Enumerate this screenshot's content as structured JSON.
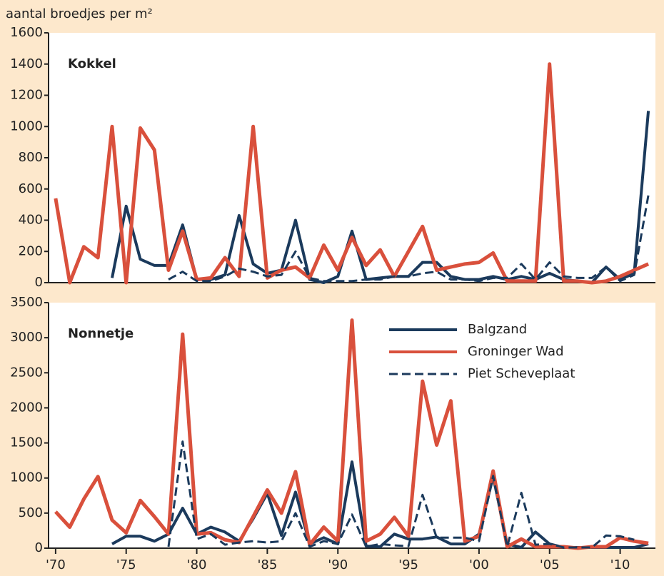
{
  "chart_data": [
    {
      "type": "line",
      "title": "Kokkel",
      "y_label": "aantal broedjes per m²",
      "xlim": [
        1969.5,
        2012.5
      ],
      "ylim": [
        0,
        1600
      ],
      "yticks": [
        0,
        200,
        400,
        600,
        800,
        1000,
        1200,
        1400,
        1600
      ],
      "x": [
        1970,
        1971,
        1972,
        1973,
        1974,
        1975,
        1976,
        1977,
        1978,
        1979,
        1980,
        1981,
        1982,
        1983,
        1984,
        1985,
        1986,
        1987,
        1988,
        1989,
        1990,
        1991,
        1992,
        1993,
        1994,
        1995,
        1996,
        1997,
        1998,
        1999,
        2000,
        2001,
        2002,
        2003,
        2004,
        2005,
        2006,
        2007,
        2008,
        2009,
        2010,
        2011,
        2012
      ],
      "series": [
        {
          "color": "#1b3a5c",
          "dashed": false,
          "values": [
            null,
            null,
            null,
            null,
            30,
            490,
            150,
            110,
            110,
            370,
            20,
            20,
            50,
            430,
            120,
            60,
            80,
            400,
            20,
            0,
            40,
            330,
            20,
            30,
            40,
            40,
            130,
            130,
            40,
            20,
            20,
            40,
            20,
            40,
            20,
            60,
            20,
            10,
            0,
            100,
            20,
            60,
            1100
          ]
        },
        {
          "color": "#d9503c",
          "dashed": false,
          "values": [
            540,
            0,
            230,
            160,
            1000,
            0,
            990,
            850,
            80,
            330,
            20,
            30,
            160,
            40,
            1000,
            30,
            80,
            100,
            30,
            240,
            80,
            290,
            110,
            210,
            40,
            200,
            360,
            80,
            100,
            120,
            130,
            190,
            10,
            10,
            10,
            1400,
            10,
            10,
            0,
            10,
            40,
            80,
            120
          ]
        },
        {
          "color": "#1b3a5c",
          "dashed": true,
          "values": [
            null,
            null,
            null,
            null,
            null,
            null,
            null,
            null,
            20,
            70,
            10,
            10,
            40,
            90,
            70,
            40,
            50,
            200,
            30,
            10,
            10,
            10,
            20,
            20,
            40,
            40,
            60,
            70,
            20,
            20,
            10,
            30,
            30,
            120,
            20,
            130,
            40,
            30,
            30,
            100,
            10,
            50,
            560
          ]
        }
      ]
    },
    {
      "type": "line",
      "title": "Nonnetje",
      "xlim": [
        1969.5,
        2012.5
      ],
      "ylim": [
        0,
        3500
      ],
      "yticks": [
        0,
        500,
        1000,
        1500,
        2000,
        2500,
        3000,
        3500
      ],
      "xticks": [
        {
          "value": 1970,
          "label": "'70"
        },
        {
          "value": 1975,
          "label": "'75"
        },
        {
          "value": 1980,
          "label": "'80"
        },
        {
          "value": 1985,
          "label": "'85"
        },
        {
          "value": 1990,
          "label": "'90"
        },
        {
          "value": 1995,
          "label": "'95"
        },
        {
          "value": 2000,
          "label": "'00"
        },
        {
          "value": 2005,
          "label": "'05"
        },
        {
          "value": 2010,
          "label": "'10"
        }
      ],
      "legend": "upper right",
      "x": [
        1970,
        1971,
        1972,
        1973,
        1974,
        1975,
        1976,
        1977,
        1978,
        1979,
        1980,
        1981,
        1982,
        1983,
        1984,
        1985,
        1986,
        1987,
        1988,
        1989,
        1990,
        1991,
        1992,
        1993,
        1994,
        1995,
        1996,
        1997,
        1998,
        1999,
        2000,
        2001,
        2002,
        2003,
        2004,
        2005,
        2006,
        2007,
        2008,
        2009,
        2010,
        2011,
        2012
      ],
      "series": [
        {
          "name": "Balgzand",
          "color": "#1b3a5c",
          "dashed": false,
          "values": [
            null,
            null,
            null,
            null,
            60,
            170,
            170,
            100,
            200,
            570,
            200,
            300,
            230,
            100,
            420,
            780,
            180,
            800,
            60,
            150,
            60,
            1230,
            30,
            20,
            200,
            130,
            130,
            160,
            60,
            60,
            200,
            1020,
            60,
            10,
            230,
            60,
            10,
            10,
            10,
            10,
            10,
            10,
            60
          ]
        },
        {
          "name": "Groninger Wad",
          "color": "#d9503c",
          "dashed": false,
          "values": [
            520,
            300,
            700,
            1020,
            400,
            220,
            680,
            450,
            200,
            3050,
            200,
            220,
            120,
            80,
            450,
            830,
            500,
            1090,
            50,
            300,
            100,
            3250,
            100,
            200,
            440,
            170,
            2380,
            1470,
            2100,
            100,
            170,
            1100,
            20,
            130,
            20,
            20,
            20,
            0,
            20,
            20,
            150,
            100,
            70
          ]
        },
        {
          "name": "Piet Scheveplaat",
          "color": "#1b3a5c",
          "dashed": true,
          "values": [
            null,
            null,
            null,
            null,
            null,
            null,
            null,
            null,
            20,
            1520,
            130,
            200,
            50,
            80,
            100,
            80,
            100,
            500,
            20,
            100,
            60,
            480,
            20,
            60,
            40,
            30,
            760,
            150,
            150,
            150,
            100,
            1030,
            20,
            790,
            50,
            60,
            10,
            10,
            10,
            180,
            170,
            120,
            null
          ]
        }
      ]
    }
  ]
}
